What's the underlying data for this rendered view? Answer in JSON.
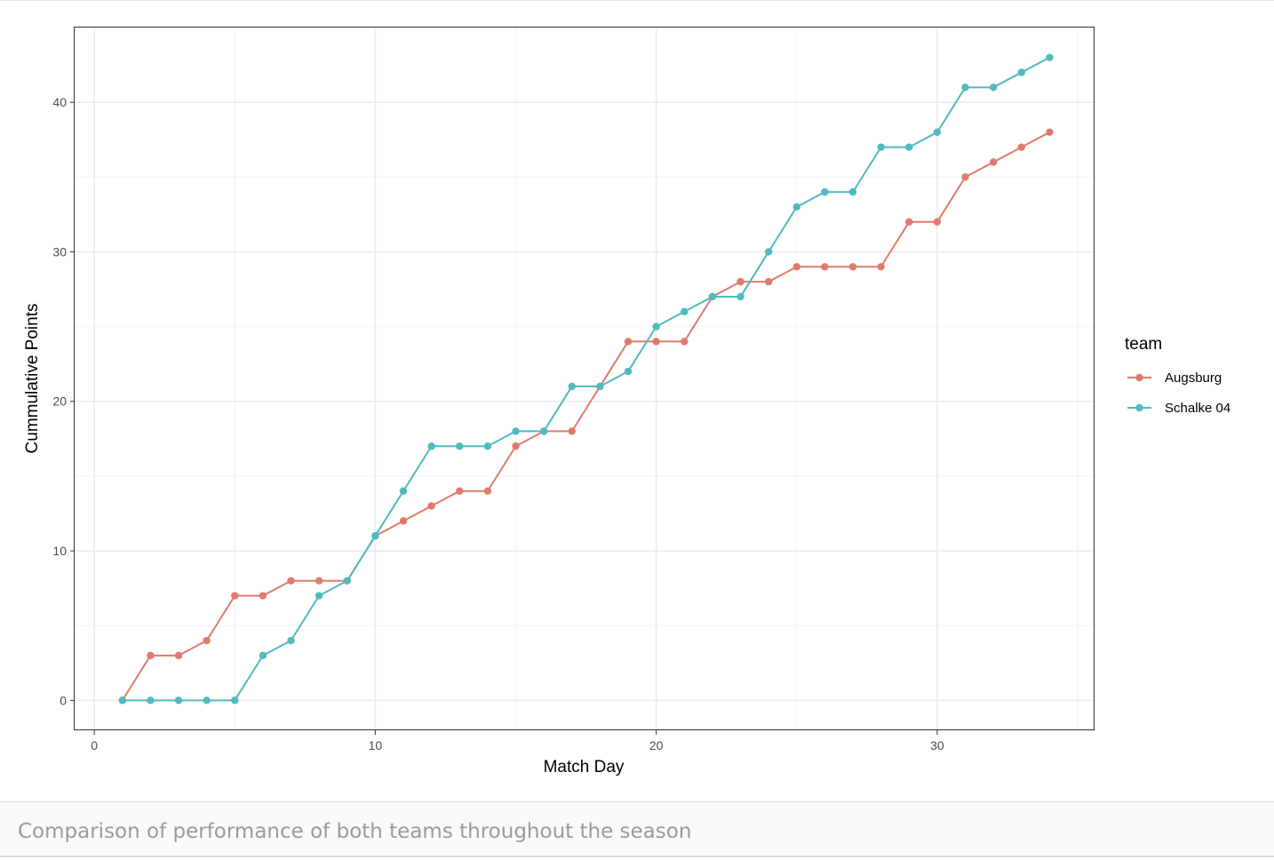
{
  "caption": "Comparison of performance of both teams throughout the season",
  "chart_data": {
    "type": "line",
    "xlabel": "Match Day",
    "ylabel": "Cummulative Points",
    "xlim": [
      -0.7,
      35.6
    ],
    "ylim": [
      -2,
      45
    ],
    "x_ticks": [
      0,
      10,
      20,
      30
    ],
    "y_ticks": [
      0,
      10,
      20,
      30,
      40
    ],
    "grid": true,
    "legend": {
      "title": "team",
      "placement": "right"
    },
    "x": [
      1,
      2,
      3,
      4,
      5,
      6,
      7,
      8,
      9,
      10,
      11,
      12,
      13,
      14,
      15,
      16,
      17,
      18,
      19,
      20,
      21,
      22,
      23,
      24,
      25,
      26,
      27,
      28,
      29,
      30,
      31,
      32,
      33,
      34
    ],
    "series": [
      {
        "name": "Augsburg",
        "color": "#E07B6C",
        "values": [
          0,
          3,
          3,
          4,
          7,
          7,
          8,
          8,
          8,
          11,
          12,
          13,
          14,
          14,
          17,
          18,
          18,
          21,
          24,
          24,
          24,
          27,
          28,
          28,
          29,
          29,
          29,
          29,
          32,
          32,
          35,
          36,
          37,
          38
        ]
      },
      {
        "name": "Schalke 04",
        "color": "#4FBBBF",
        "values": [
          0,
          0,
          0,
          0,
          0,
          3,
          4,
          7,
          8,
          11,
          14,
          17,
          17,
          17,
          18,
          18,
          21,
          21,
          22,
          25,
          26,
          27,
          27,
          30,
          33,
          34,
          34,
          37,
          37,
          38,
          41,
          41,
          42,
          43
        ]
      }
    ]
  }
}
